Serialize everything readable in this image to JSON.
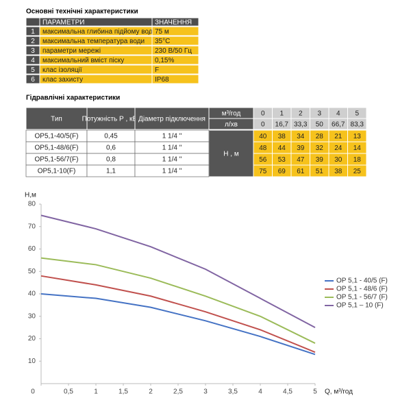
{
  "spec": {
    "title": "Основні технічні характеристики",
    "header": [
      "ПАРАМЕТРИ",
      "ЗНАЧЕННЯ"
    ],
    "rows": [
      [
        "1",
        "максимальна глибина підйому води",
        "75 м"
      ],
      [
        "2",
        "максимальна температура води",
        "35°С"
      ],
      [
        "3",
        "параметри мережі",
        "230 В/50 Гц"
      ],
      [
        "4",
        "максимальний вміст піску",
        "0,15%"
      ],
      [
        "5",
        "клас ізоляції",
        "F"
      ],
      [
        "6",
        "клас захисту",
        "IP68"
      ]
    ]
  },
  "hydraulic": {
    "title": "Гідравлічні характеристики",
    "header": [
      "Тип",
      "Потужність Р , кВт",
      "Діаметр підключення"
    ],
    "flow_units": [
      "м³/год",
      "л/хв"
    ],
    "flow_m3h": [
      0,
      1,
      2,
      3,
      4,
      5
    ],
    "flow_lmin": [
      "0",
      "16,7",
      "33,3",
      "50",
      "66,7",
      "83,3"
    ],
    "head_label": "Н , м",
    "rows": [
      {
        "type": "OP5,1-40/5(F)",
        "power": "0,45",
        "diameter": "1 1/4 \"",
        "heads": [
          40,
          38,
          34,
          28,
          21,
          13
        ]
      },
      {
        "type": "OP5,1-48/6(F)",
        "power": "0,6",
        "diameter": "1 1/4 \"",
        "heads": [
          48,
          44,
          39,
          32,
          24,
          14
        ]
      },
      {
        "type": "OP5,1-56/7(F)",
        "power": "0,8",
        "diameter": "1 1/4 \"",
        "heads": [
          56,
          53,
          47,
          39,
          30,
          18
        ]
      },
      {
        "type": "OP5,1-10(F)",
        "power": "1,1",
        "diameter": "1 1/4 \"",
        "heads": [
          75,
          69,
          61,
          51,
          38,
          25
        ]
      }
    ]
  },
  "chart_data": {
    "type": "line",
    "xlabel": "Q, м³/год",
    "ylabel": "H,м",
    "x": [
      0,
      1,
      2,
      3,
      4,
      5
    ],
    "xlim": [
      0,
      5
    ],
    "xticks": [
      0,
      {
        "value": 0.5,
        "label": "0,5"
      },
      1,
      {
        "value": 1.5,
        "label": "1,5"
      },
      2,
      {
        "value": 2.5,
        "label": "2,5"
      },
      3,
      {
        "value": 3.5,
        "label": "3,5"
      },
      4,
      {
        "value": 4.5,
        "label": "4,5"
      },
      5
    ],
    "ylim": [
      0,
      80
    ],
    "yticks": [
      10,
      20,
      30,
      40,
      50,
      60,
      70,
      80
    ],
    "series": [
      {
        "name": "OP 5,1 - 40/5 (F)",
        "color": "#4472c4",
        "values": [
          40,
          38,
          34,
          28,
          21,
          13
        ]
      },
      {
        "name": "OP 5,1 - 48/6 (F)",
        "color": "#c0504d",
        "values": [
          48,
          44,
          39,
          32,
          24,
          14
        ]
      },
      {
        "name": "OP 5,1 - 56/7 (F)",
        "color": "#9bbb59",
        "values": [
          56,
          53,
          47,
          39,
          30,
          18
        ]
      },
      {
        "name": "OP 5,1 – 10 (F)",
        "color": "#8064a2",
        "values": [
          75,
          69,
          61,
          51,
          38,
          25
        ]
      }
    ]
  }
}
